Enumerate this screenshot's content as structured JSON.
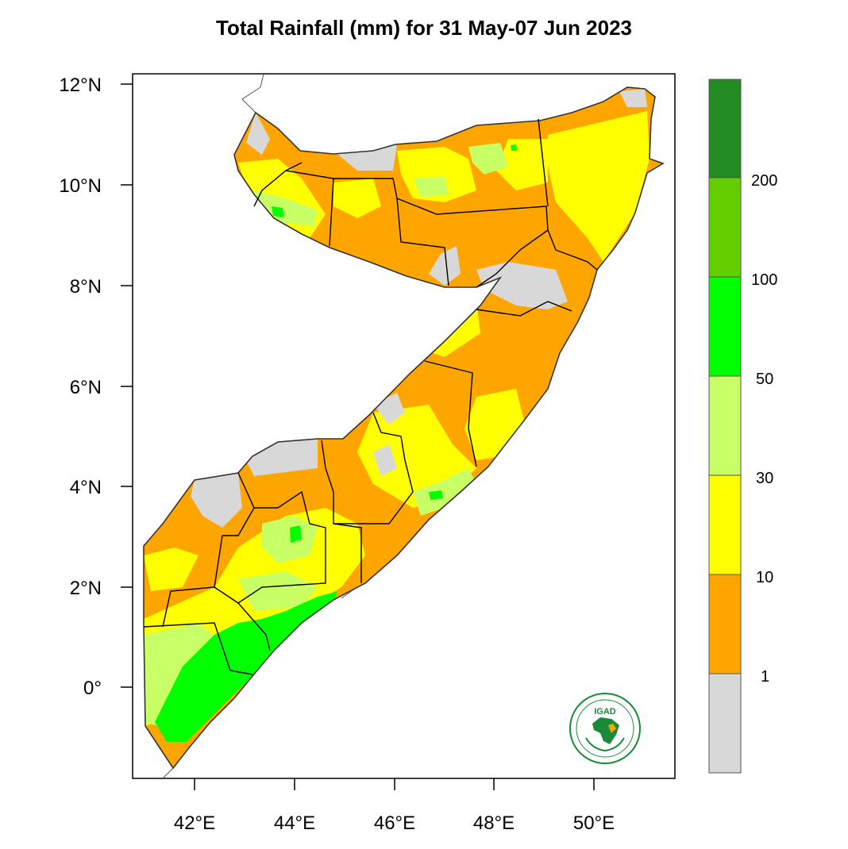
{
  "title": "Total Rainfall (mm) for 31 May-07 Jun 2023",
  "axes": {
    "y_ticks": [
      "12°N",
      "10°N",
      "8°N",
      "6°N",
      "4°N",
      "2°N",
      "0°"
    ],
    "x_ticks": [
      "42°E",
      "44°E",
      "46°E",
      "48°E",
      "50°E"
    ]
  },
  "colorbar": {
    "colors": [
      "#d8d8d8",
      "#ffa500",
      "#ffff00",
      "#c8ff64",
      "#00ff00",
      "#64cd00",
      "#228b22"
    ],
    "labels": [
      "1",
      "10",
      "30",
      "50",
      "100",
      "200"
    ]
  },
  "palette": {
    "dry": "#d8d8d8",
    "orange": "#ffa500",
    "yellow": "#ffff00",
    "lightgreen": "#c8ff64",
    "green": "#00ff00",
    "borders": "#000000"
  },
  "logo": {
    "text": "IGAD",
    "ring_text": "INTERGOVERNMENTAL AUTHORITY ON DEVELOPMENT"
  }
}
